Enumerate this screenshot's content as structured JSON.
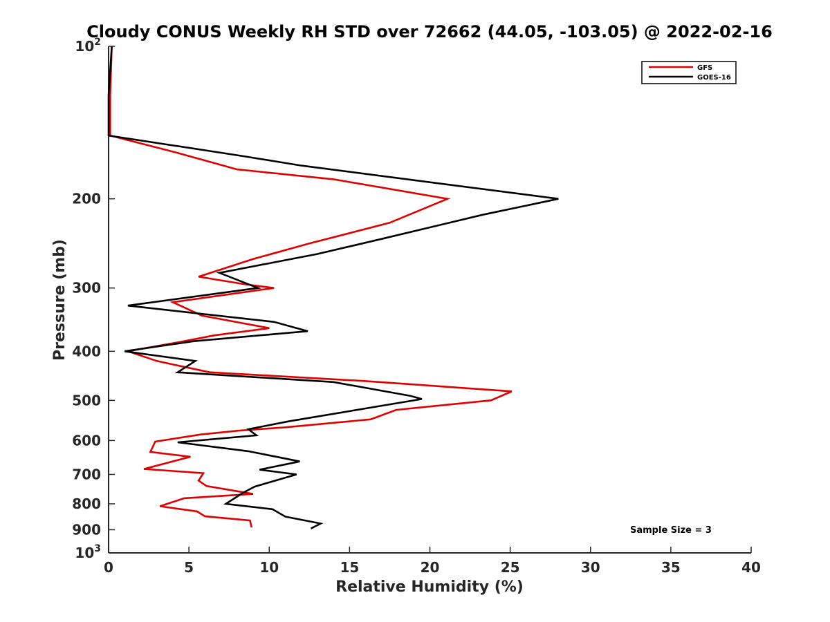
{
  "chart_data": {
    "type": "line",
    "title": "Cloudy CONUS Weekly RH STD over 72662 (44.05, -103.05) @ 2022-02-16",
    "xlabel": "Relative Humidity (%)",
    "ylabel": "Pressure (mb)",
    "xlim": [
      0,
      40
    ],
    "ylim": [
      100,
      1000
    ],
    "yscale": "log",
    "y_reversed": true,
    "x_ticks": [
      0,
      5,
      10,
      15,
      20,
      25,
      30,
      35,
      40
    ],
    "x_tick_labels": [
      "0",
      "5",
      "10",
      "15",
      "20",
      "25",
      "30",
      "35",
      "40"
    ],
    "y_ticks": [
      100,
      200,
      300,
      400,
      500,
      600,
      700,
      800,
      900,
      1000
    ],
    "y_tick_labels": [
      {
        "base": "10",
        "sup": "2"
      },
      {
        "base": "200"
      },
      {
        "base": "300"
      },
      {
        "base": "400"
      },
      {
        "base": "500"
      },
      {
        "base": "600"
      },
      {
        "base": "700"
      },
      {
        "base": "800"
      },
      {
        "base": "900"
      },
      {
        "base": "10",
        "sup": "3"
      }
    ],
    "grid": false,
    "legend_position": "top-right",
    "annotation": "Sample Size = 3",
    "series": [
      {
        "name": "GFS",
        "color": "#e00000",
        "points": [
          [
            0.2,
            100
          ],
          [
            0.1,
            125
          ],
          [
            0.1,
            150
          ],
          [
            4.2,
            162
          ],
          [
            8,
            175
          ],
          [
            14,
            183
          ],
          [
            21.1,
            200
          ],
          [
            17.5,
            223
          ],
          [
            12.5,
            245
          ],
          [
            9,
            263
          ],
          [
            5.6,
            285
          ],
          [
            8.5,
            295
          ],
          [
            10.3,
            300
          ],
          [
            4,
            320
          ],
          [
            5.8,
            340
          ],
          [
            10,
            360
          ],
          [
            6.6,
            372
          ],
          [
            4.7,
            382
          ],
          [
            1.2,
            400
          ],
          [
            3,
            418
          ],
          [
            4.8,
            430
          ],
          [
            6.3,
            440
          ],
          [
            16,
            458
          ],
          [
            25.1,
            480
          ],
          [
            23.8,
            500
          ],
          [
            17.9,
            522
          ],
          [
            16.3,
            545
          ],
          [
            11,
            565
          ],
          [
            8,
            574
          ],
          [
            5.7,
            584
          ],
          [
            2.9,
            603
          ],
          [
            2.6,
            632
          ],
          [
            5.1,
            646
          ],
          [
            2.2,
            683
          ],
          [
            5.9,
            696
          ],
          [
            5.6,
            720
          ],
          [
            6.1,
            738
          ],
          [
            9,
            765
          ],
          [
            4.7,
            780
          ],
          [
            3.2,
            809
          ],
          [
            5.5,
            828
          ],
          [
            6,
            847
          ],
          [
            8.8,
            863
          ],
          [
            8.9,
            890
          ]
        ]
      },
      {
        "name": "GOES-16",
        "color": "#000000",
        "points": [
          [
            0.2,
            100
          ],
          [
            0,
            125
          ],
          [
            0,
            150
          ],
          [
            8.5,
            165
          ],
          [
            12,
            172
          ],
          [
            28,
            200
          ],
          [
            23.3,
            215
          ],
          [
            17,
            240
          ],
          [
            13,
            257
          ],
          [
            6.9,
            280
          ],
          [
            9.3,
            300
          ],
          [
            1.2,
            325
          ],
          [
            10.3,
            350
          ],
          [
            12.4,
            365
          ],
          [
            5.3,
            382
          ],
          [
            1,
            400
          ],
          [
            5.4,
            418
          ],
          [
            4.3,
            440
          ],
          [
            14,
            460
          ],
          [
            18.8,
            490
          ],
          [
            19.5,
            497
          ],
          [
            11.2,
            550
          ],
          [
            8.7,
            570
          ],
          [
            9.2,
            586
          ],
          [
            4.3,
            605
          ],
          [
            8.7,
            630
          ],
          [
            11.5,
            656
          ],
          [
            11.9,
            660
          ],
          [
            9.4,
            685
          ],
          [
            11.7,
            700
          ],
          [
            9.1,
            740
          ],
          [
            8.4,
            760
          ],
          [
            7.3,
            800
          ],
          [
            10.2,
            820
          ],
          [
            11,
            848
          ],
          [
            13.2,
            875
          ],
          [
            12.6,
            895
          ]
        ]
      }
    ]
  }
}
